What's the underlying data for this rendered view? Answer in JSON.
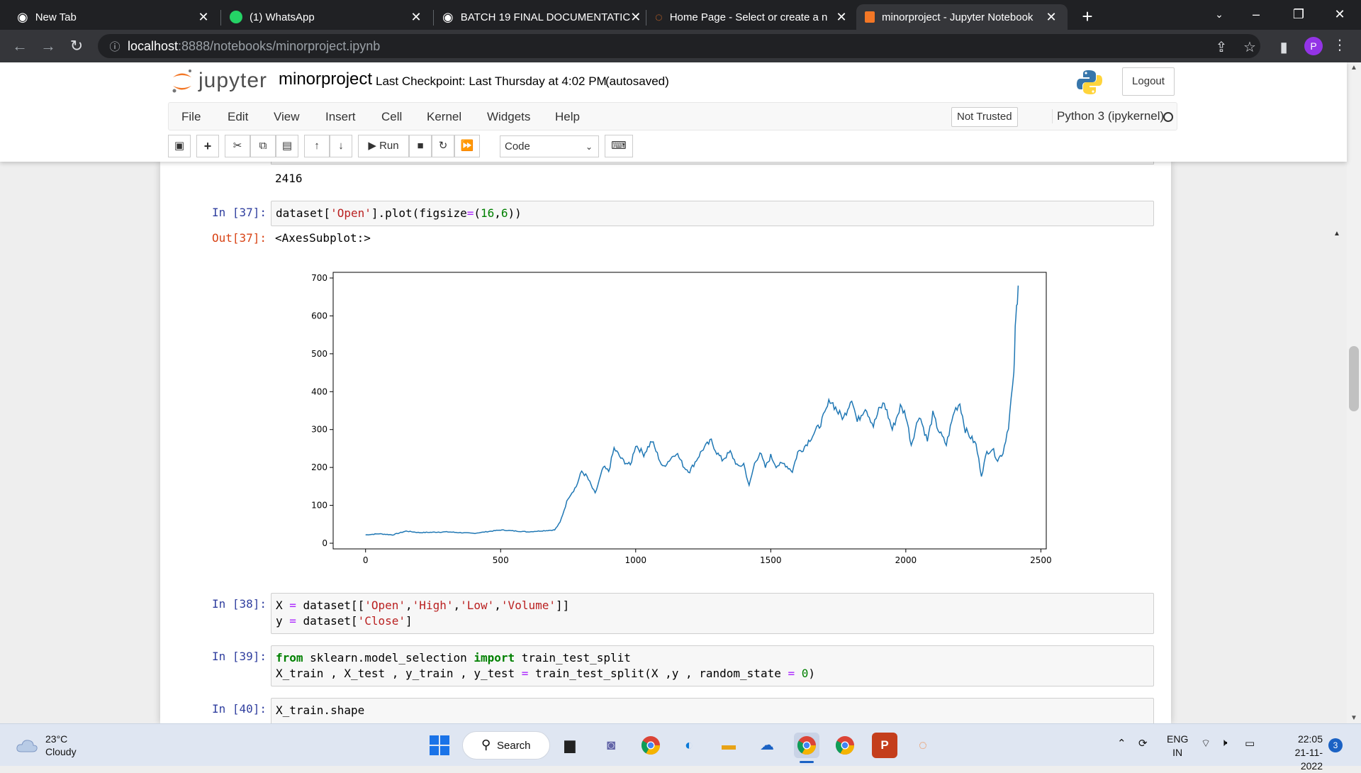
{
  "browser": {
    "tabs": [
      {
        "title": "New Tab",
        "icon": "chrome-icon",
        "active": false
      },
      {
        "title": "(1) WhatsApp",
        "icon": "whatsapp-icon",
        "active": false
      },
      {
        "title": "BATCH 19 FINAL DOCUMENTATIC",
        "icon": "globe-icon",
        "active": false
      },
      {
        "title": "Home Page - Select or create a n",
        "icon": "jupyter-icon",
        "active": false
      },
      {
        "title": "minorproject - Jupyter Notebook",
        "icon": "notebook-icon",
        "active": true
      }
    ],
    "url_host": "localhost",
    "url_rest": ":8888/notebooks/minorproject.ipynb",
    "profile_initial": "P"
  },
  "jupyter": {
    "logo_text": "jupyter",
    "notebook_name": "minorproject",
    "checkpoint": "Last Checkpoint: Last Thursday at 4:02 PM",
    "autosaved": "(autosaved)",
    "logout": "Logout",
    "menu": [
      "File",
      "Edit",
      "View",
      "Insert",
      "Cell",
      "Kernel",
      "Widgets",
      "Help"
    ],
    "trust": "Not Trusted",
    "kernel": "Python 3 (ipykernel)",
    "toolbar": {
      "run": "Run",
      "cell_type": "Code"
    }
  },
  "cells": {
    "prev_output": "2416",
    "c37_prompt": "In [37]:",
    "c37_out_prompt": "Out[37]:",
    "c37_out_text": "<AxesSubplot:>",
    "c38_prompt": "In [38]:",
    "c39_prompt": "In [39]:",
    "c40_prompt": "In [40]:",
    "c40_code": "X_train.shape"
  },
  "chart_data": {
    "type": "line",
    "title": "",
    "xlabel": "",
    "ylabel": "",
    "xlim": [
      -120,
      2520
    ],
    "ylim": [
      -15,
      715
    ],
    "xticks": [
      0,
      500,
      1000,
      1500,
      2000,
      2500
    ],
    "yticks": [
      0,
      100,
      200,
      300,
      400,
      500,
      600,
      700
    ],
    "grid": false,
    "color": "#1f77b4",
    "series": [
      {
        "x": [
          0,
          50,
          100,
          150,
          200,
          300,
          400,
          500,
          600,
          700,
          720,
          750,
          780,
          800,
          820,
          850,
          880,
          900,
          920,
          950,
          980,
          1000,
          1030,
          1060,
          1100,
          1150,
          1180,
          1200,
          1250,
          1280,
          1300,
          1320,
          1350,
          1380,
          1400,
          1420,
          1440,
          1460,
          1480,
          1500,
          1520,
          1550,
          1580,
          1600,
          1620,
          1650,
          1680,
          1700,
          1720,
          1750,
          1770,
          1800,
          1820,
          1850,
          1880,
          1900,
          1920,
          1950,
          1980,
          2000,
          2020,
          2050,
          2080,
          2100,
          2120,
          2150,
          2180,
          2200,
          2220,
          2240,
          2260,
          2280,
          2300,
          2320,
          2340,
          2360,
          2380,
          2390,
          2400,
          2405,
          2410,
          2416
        ],
        "y": [
          22,
          25,
          22,
          32,
          28,
          30,
          26,
          35,
          30,
          35,
          55,
          120,
          150,
          190,
          175,
          130,
          200,
          190,
          250,
          220,
          205,
          260,
          235,
          270,
          200,
          240,
          200,
          190,
          250,
          270,
          240,
          220,
          240,
          200,
          210,
          150,
          210,
          240,
          200,
          230,
          205,
          210,
          190,
          240,
          250,
          280,
          310,
          340,
          380,
          345,
          330,
          385,
          320,
          360,
          310,
          350,
          370,
          300,
          360,
          340,
          260,
          340,
          270,
          340,
          300,
          260,
          350,
          370,
          300,
          280,
          260,
          180,
          240,
          250,
          220,
          240,
          310,
          380,
          440,
          560,
          620,
          680
        ]
      }
    ]
  },
  "taskbar": {
    "temp": "23°C",
    "condition": "Cloudy",
    "search": "Search",
    "lang1": "ENG",
    "lang2": "IN",
    "time": "22:05",
    "date": "21-11-2022",
    "notif_count": "3"
  }
}
